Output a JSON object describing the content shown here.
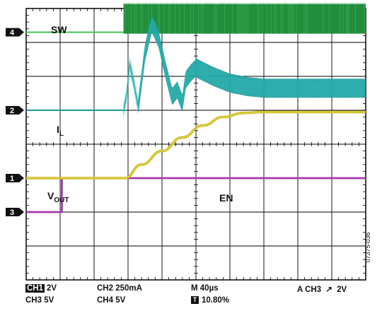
{
  "chart_data": {
    "type": "line",
    "title": "",
    "grid": true,
    "x_divisions": 10,
    "y_divisions": 8,
    "time_per_div_us": 40,
    "trace_labels": {
      "sw": "SW",
      "il_main": "I",
      "il_sub": "L",
      "vout_main": "V",
      "vout_sub": "OUT",
      "en": "EN"
    },
    "channel_markers": [
      "4",
      "2",
      "1",
      "3"
    ],
    "series": [
      {
        "name": "SW",
        "channel": "4",
        "color": "#1f8a3a",
        "color_light": "#55cc66",
        "baseline_div": 0.7,
        "high_div": -0.3,
        "switch_start_div": 2.87
      },
      {
        "name": "IL",
        "channel": "2",
        "color": "#1e9a9a",
        "baseline_div": 3.0,
        "step_div": 2.87,
        "envelope_points": [
          [
            2.87,
            3.0
          ],
          [
            2.95,
            2.6
          ],
          [
            3.05,
            1.65
          ],
          [
            3.15,
            2.1
          ],
          [
            3.3,
            2.9
          ],
          [
            3.5,
            1.3
          ],
          [
            3.7,
            0.45
          ],
          [
            3.9,
            0.9
          ],
          [
            4.1,
            1.8
          ],
          [
            4.3,
            2.6
          ],
          [
            4.45,
            2.4
          ],
          [
            4.6,
            2.8
          ],
          [
            4.7,
            2.1
          ],
          [
            4.85,
            1.9
          ],
          [
            5.0,
            1.75
          ],
          [
            5.5,
            2.0
          ],
          [
            6.0,
            2.2
          ],
          [
            6.5,
            2.3
          ],
          [
            7.0,
            2.35
          ],
          [
            10.0,
            2.35
          ]
        ],
        "ripple_div": 0.28
      },
      {
        "name": "VOUT",
        "channel": "1",
        "color": "#c8b820",
        "points": [
          [
            0.0,
            5.0
          ],
          [
            2.9,
            5.0
          ],
          [
            3.4,
            4.6
          ],
          [
            4.0,
            4.2
          ],
          [
            4.6,
            3.8
          ],
          [
            5.2,
            3.45
          ],
          [
            5.8,
            3.2
          ],
          [
            6.4,
            3.08
          ],
          [
            7.0,
            3.05
          ],
          [
            10.0,
            3.05
          ]
        ]
      },
      {
        "name": "EN",
        "channel": "3",
        "color": "#a43aa8",
        "low_div": 6.0,
        "high_div": 5.0,
        "edge_div": 1.05
      }
    ]
  },
  "status_bar": {
    "ch1_tag": "CH1",
    "ch1_scale": "2V",
    "ch2": "CH2 250mA",
    "timebase": "M 40µs",
    "trigger": "A  CH3",
    "trigger_symbol": "⋀",
    "trigger_level": "2V",
    "ch3": "CH3 5V",
    "ch4": "CH4 5V",
    "t_marker": "T",
    "trigger_pos": "10.80%"
  },
  "figure_number": "07375-036"
}
